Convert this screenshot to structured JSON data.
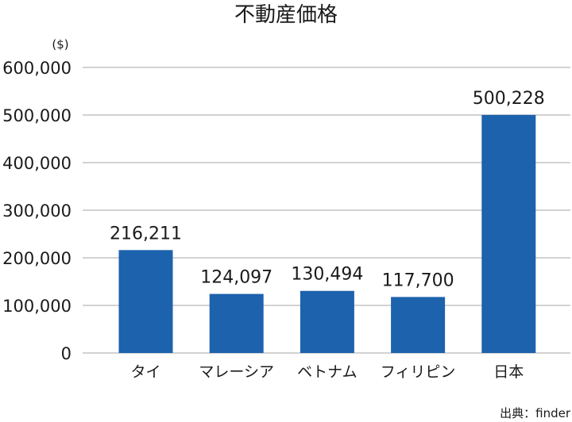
{
  "chart_data": {
    "type": "bar",
    "title": "不動産価格",
    "unit_label": "($)",
    "categories": [
      "タイ",
      "マレーシア",
      "ベトナム",
      "フィリピン",
      "日本"
    ],
    "values": [
      216211,
      124097,
      130494,
      117700,
      500228
    ],
    "value_labels": [
      "216,211",
      "124,097",
      "130,494",
      "117,700",
      "500,228"
    ],
    "ylim": [
      0,
      600000
    ],
    "yticks": [
      0,
      100000,
      200000,
      300000,
      400000,
      500000,
      600000
    ],
    "ytick_labels": [
      "0",
      "100,000",
      "200,000",
      "300,000",
      "400,000",
      "500,000",
      "600,000"
    ],
    "grid": true,
    "bar_color": "#1c62ad",
    "grid_color": "#a6a6a6",
    "source": "出典：finder"
  }
}
